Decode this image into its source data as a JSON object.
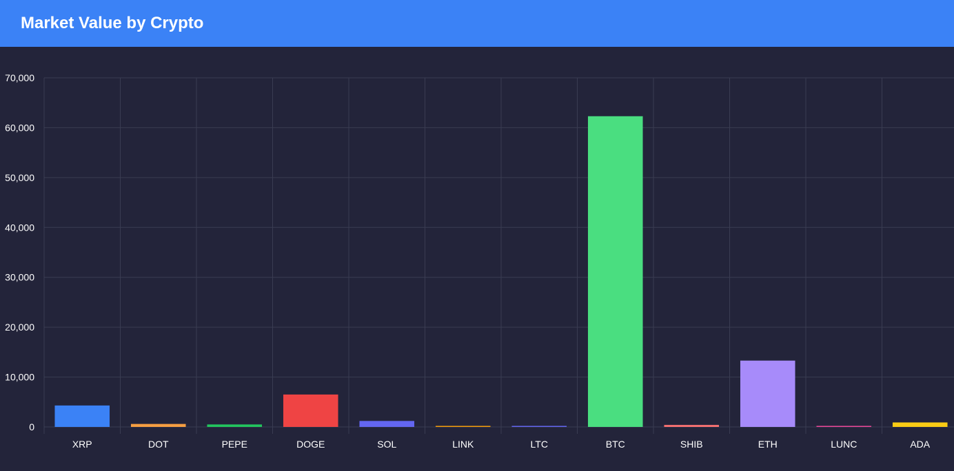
{
  "header": {
    "title": "Market Value by Crypto"
  },
  "colors": {
    "header_bg": "#3b82f6",
    "panel_bg": "#23243a",
    "grid": "#3a3c52",
    "text": "#ffffff"
  },
  "chart_data": {
    "type": "bar",
    "title": "Market Value by Crypto",
    "xlabel": "",
    "ylabel": "",
    "ylim": [
      0,
      70000
    ],
    "yticks": [
      0,
      10000,
      20000,
      30000,
      40000,
      50000,
      60000,
      70000
    ],
    "ytick_labels": [
      "0",
      "10,000",
      "20,000",
      "30,000",
      "40,000",
      "50,000",
      "60,000",
      "70,000"
    ],
    "grid": true,
    "categories": [
      "XRP",
      "DOT",
      "PEPE",
      "DOGE",
      "SOL",
      "LINK",
      "LTC",
      "BTC",
      "SHIB",
      "ETH",
      "LUNC",
      "ADA"
    ],
    "values": [
      4300,
      600,
      500,
      6500,
      1200,
      150,
      120,
      62300,
      400,
      13300,
      100,
      900
    ],
    "bar_colors": [
      "#3b82f6",
      "#f59e42",
      "#22c55e",
      "#ef4444",
      "#6366f1",
      "#f59e0b",
      "#6366f1",
      "#4ade80",
      "#f87171",
      "#a78bfa",
      "#ec4899",
      "#facc15"
    ]
  }
}
